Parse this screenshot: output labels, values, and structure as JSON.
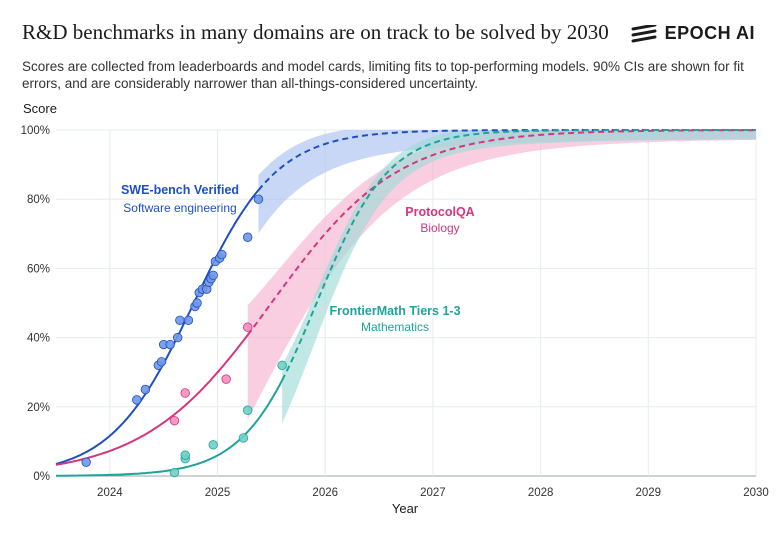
{
  "title": "R&D benchmarks in many domains are on track to be solved by 2030",
  "brand": "EPOCH AI",
  "brand_icon": "epoch-logo-icon",
  "subtitle": "Scores are collected from leaderboards and model cards, limiting fits to top-performing models. 90% CIs are shown for fit errors, and are considerably narrower than all-things-considered uncertainty.",
  "colors": {
    "swe": "#1f4fc4",
    "swe_point": "#6f97e6",
    "swe_band": "#a9c2f0",
    "protocol": "#d6357f",
    "protocol_point": "#ef8fbc",
    "protocol_band": "#f4b3cf",
    "frontier": "#1fa39b",
    "frontier_point": "#6fd0c8",
    "frontier_band": "#9fdcd7",
    "grid": "#e6ecec",
    "axis_text": "#333333"
  },
  "chart_data": {
    "type": "scatter",
    "xlabel": "Year",
    "ylabel": "Score",
    "xlim": [
      2023.5,
      2030
    ],
    "ylim": [
      0,
      100
    ],
    "x_ticks": [
      "2024",
      "2025",
      "2026",
      "2027",
      "2028",
      "2029",
      "2030"
    ],
    "y_ticks": [
      "0%",
      "20%",
      "40%",
      "60%",
      "80%",
      "100%"
    ],
    "grid": true,
    "series": [
      {
        "name": "SWE-bench Verified",
        "label": "SWE-bench Verified",
        "sublabel": "Software engineering",
        "color_key": "swe",
        "fit_midpoint": 2024.78,
        "fit_rate": 2.6,
        "last_observed": 2025.38,
        "band_start": 2025.38,
        "band_width_start": 10,
        "points": [
          {
            "x": 2023.78,
            "y": 4
          },
          {
            "x": 2024.25,
            "y": 22
          },
          {
            "x": 2024.33,
            "y": 25
          },
          {
            "x": 2024.45,
            "y": 32
          },
          {
            "x": 2024.48,
            "y": 33
          },
          {
            "x": 2024.5,
            "y": 38
          },
          {
            "x": 2024.56,
            "y": 38
          },
          {
            "x": 2024.63,
            "y": 40
          },
          {
            "x": 2024.65,
            "y": 45
          },
          {
            "x": 2024.73,
            "y": 45
          },
          {
            "x": 2024.79,
            "y": 49
          },
          {
            "x": 2024.81,
            "y": 50
          },
          {
            "x": 2024.83,
            "y": 53
          },
          {
            "x": 2024.86,
            "y": 54
          },
          {
            "x": 2024.9,
            "y": 54
          },
          {
            "x": 2024.92,
            "y": 56
          },
          {
            "x": 2024.94,
            "y": 57
          },
          {
            "x": 2024.96,
            "y": 58
          },
          {
            "x": 2024.98,
            "y": 62
          },
          {
            "x": 2025.02,
            "y": 63
          },
          {
            "x": 2025.04,
            "y": 64
          },
          {
            "x": 2025.28,
            "y": 69
          },
          {
            "x": 2025.38,
            "y": 80
          }
        ]
      },
      {
        "name": "ProtocolQA",
        "label": "ProtocolQA",
        "sublabel": "Biology",
        "color_key": "protocol",
        "fit_midpoint": 2025.5,
        "fit_rate": 1.7,
        "last_observed": 2025.28,
        "band_start": 2025.28,
        "band_width_start": 22,
        "points": [
          {
            "x": 2024.6,
            "y": 16
          },
          {
            "x": 2024.7,
            "y": 24
          },
          {
            "x": 2025.08,
            "y": 28
          },
          {
            "x": 2025.28,
            "y": 43
          }
        ]
      },
      {
        "name": "FrontierMath Tiers 1-3",
        "label": "FrontierMath Tiers 1-3",
        "sublabel": "Mathematics",
        "color_key": "frontier",
        "fit_midpoint": 2025.92,
        "fit_rate": 3.0,
        "last_observed": 2025.6,
        "band_start": 2025.6,
        "band_width_start": 10,
        "points": [
          {
            "x": 2024.6,
            "y": 1
          },
          {
            "x": 2024.7,
            "y": 5
          },
          {
            "x": 2024.7,
            "y": 6
          },
          {
            "x": 2024.96,
            "y": 9
          },
          {
            "x": 2025.24,
            "y": 11
          },
          {
            "x": 2025.28,
            "y": 19
          },
          {
            "x": 2025.6,
            "y": 32
          }
        ]
      }
    ]
  }
}
